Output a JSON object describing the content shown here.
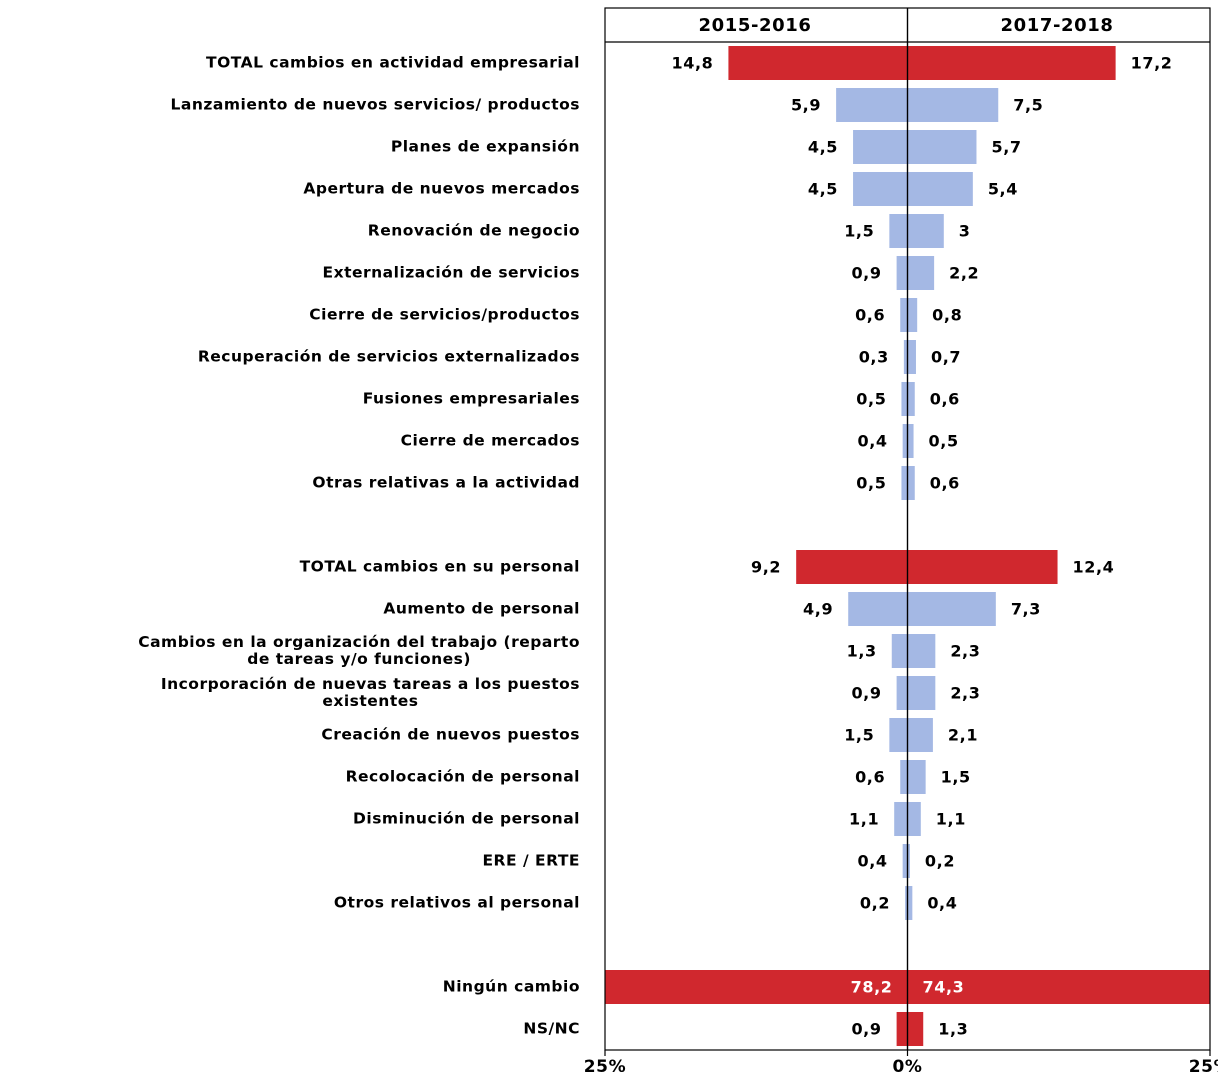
{
  "chart_data": {
    "type": "butterfly-bar",
    "categories": [
      "TOTAL cambios en actividad empresarial",
      "Lanzamiento de nuevos servicios/ productos",
      "Planes de expansión",
      "Apertura de nuevos mercados",
      "Renovación de negocio",
      "Externalización de servicios",
      "Cierre de servicios/productos",
      "Recuperación de servicios externalizados",
      "Fusiones empresariales",
      "Cierre de mercados",
      "Otras relativas a la actividad",
      null,
      "TOTAL cambios en su personal",
      "Aumento de personal",
      "Cambios en la organización del trabajo (reparto\nde tareas y/o funciones)",
      "Incorporación de nuevas tareas a los puestos\nexistentes",
      "Creación de nuevos puestos",
      "Recolocación de personal",
      "Disminución de personal",
      "ERE / ERTE",
      "Otros relativos al personal",
      null,
      "Ningún cambio",
      "NS/NC"
    ],
    "series": [
      {
        "name": "2015-2016",
        "values": [
          14.8,
          5.9,
          4.5,
          4.5,
          1.5,
          0.9,
          0.6,
          0.3,
          0.5,
          0.4,
          0.5,
          null,
          9.2,
          4.9,
          1.3,
          0.9,
          1.5,
          0.6,
          1.1,
          0.4,
          0.2,
          null,
          78.2,
          0.9
        ],
        "value_labels": [
          "14,8",
          "5,9",
          "4,5",
          "4,5",
          "1,5",
          "0,9",
          "0,6",
          "0,3",
          "0,5",
          "0,4",
          "0,5",
          null,
          "9,2",
          "4,9",
          "1,3",
          "0,9",
          "1,5",
          "0,6",
          "1,1",
          "0,4",
          "0,2",
          null,
          "78,2",
          "0,9"
        ]
      },
      {
        "name": "2017-2018",
        "values": [
          17.2,
          7.5,
          5.7,
          5.4,
          3,
          2.2,
          0.8,
          0.7,
          0.6,
          0.5,
          0.6,
          null,
          12.4,
          7.3,
          2.3,
          2.3,
          2.1,
          1.5,
          1.1,
          0.2,
          0.4,
          null,
          74.3,
          1.3
        ],
        "value_labels": [
          "17,2",
          "7,5",
          "5,7",
          "5,4",
          "3",
          "2,2",
          "0,8",
          "0,7",
          "0,6",
          "0,5",
          "0,6",
          null,
          "12,4",
          "7,3",
          "2,3",
          "2,3",
          "2,1",
          "1,5",
          "1,1",
          "0,2",
          "0,4",
          null,
          "74,3",
          "1,3"
        ]
      }
    ],
    "bar_colors": [
      "#d0282e",
      "#a4b8e4",
      "#a4b8e4",
      "#a4b8e4",
      "#a4b8e4",
      "#a4b8e4",
      "#a4b8e4",
      "#a4b8e4",
      "#a4b8e4",
      "#a4b8e4",
      "#a4b8e4",
      null,
      "#d0282e",
      "#a4b8e4",
      "#a4b8e4",
      "#a4b8e4",
      "#a4b8e4",
      "#a4b8e4",
      "#a4b8e4",
      "#a4b8e4",
      "#a4b8e4",
      null,
      "#d0282e",
      "#d0282e"
    ],
    "xlim": [
      -25,
      25
    ],
    "xticks": [
      {
        "value": -25,
        "label": "25%"
      },
      {
        "value": 0,
        "label": "0%"
      },
      {
        "value": 25,
        "label": "25%"
      }
    ]
  }
}
